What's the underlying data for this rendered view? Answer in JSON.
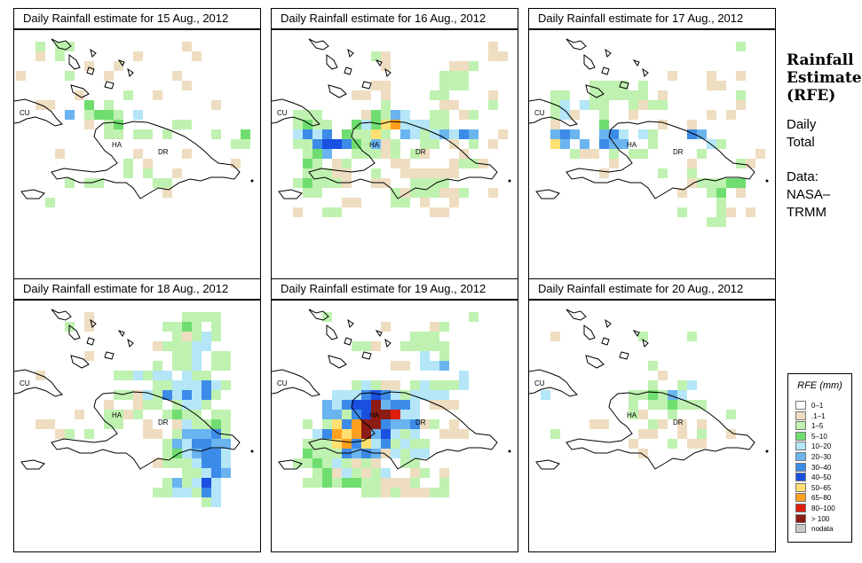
{
  "panels": [
    {
      "title": "Daily Rainfall estimate for  15 Aug., 2012",
      "labels": {
        "cu": "CU",
        "ha": "HA",
        "dr": "DR"
      }
    },
    {
      "title": "Daily Rainfall estimate for  16 Aug., 2012",
      "labels": {
        "cu": "CU",
        "ha": "HA",
        "dr": "DR"
      }
    },
    {
      "title": "Daily Rainfall estimate for  17 Aug., 2012",
      "labels": {
        "cu": "CU",
        "ha": "HA",
        "dr": "DR"
      }
    },
    {
      "title": "Daily Rainfall estimate for  18 Aug., 2012",
      "labels": {
        "cu": "CU",
        "ha": "HA",
        "dr": "DR"
      }
    },
    {
      "title": "Daily Rainfall estimate for  19 Aug., 2012",
      "labels": {
        "cu": "CU",
        "ha": "HA",
        "dr": "DR"
      }
    },
    {
      "title": "Daily Rainfall estimate for  20 Aug., 2012",
      "labels": {
        "cu": "CU",
        "ha": "HA",
        "dr": "DR"
      }
    }
  ],
  "side": {
    "title_line1": "Rainfall",
    "title_line2": "Estimate",
    "title_line3": "(RFE)",
    "daily": "Daily",
    "total": "Total",
    "data_label": "Data:",
    "source1": "NASA–",
    "source2": "TRMM"
  },
  "legend": {
    "title": "RFE (mm)",
    "items": [
      {
        "label": "0–1",
        "color": "#ffffff"
      },
      {
        "label": ".1–1",
        "color": "#eeddc0"
      },
      {
        "label": "1–5",
        "color": "#bff2b0"
      },
      {
        "label": "5–10",
        "color": "#70dd70"
      },
      {
        "label": "10–20",
        "color": "#b4e6f8"
      },
      {
        "label": "20–30",
        "color": "#6ab4f0"
      },
      {
        "label": "30–40",
        "color": "#3c8be8"
      },
      {
        "label": "40–50",
        "color": "#1a50e0"
      },
      {
        "label": "50–65",
        "color": "#ffe070"
      },
      {
        "label": "65–80",
        "color": "#ffa020"
      },
      {
        "label": "80–100",
        "color": "#dc1e0c"
      },
      {
        "label": "> 100",
        "color": "#8c1c14"
      },
      {
        "label": "nodata",
        "color": "#c8c8c8"
      }
    ]
  }
}
